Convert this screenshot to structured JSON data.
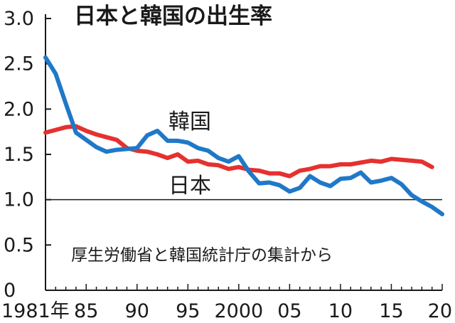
{
  "chart_data": {
    "type": "line",
    "title": "日本と韓国の出生率",
    "source_note": "厚生労働省と韓国統計庁の集計から",
    "ylim": [
      0,
      3.0
    ],
    "xlim": [
      1981,
      2020
    ],
    "y_ticks": [
      "0",
      "0.5",
      "1.0",
      "1.5",
      "2.0",
      "2.5",
      "3.0"
    ],
    "x_ticks": [
      {
        "year": 1981,
        "label": "1981年"
      },
      {
        "year": 1985,
        "label": "85"
      },
      {
        "year": 1990,
        "label": "90"
      },
      {
        "year": 1995,
        "label": "95"
      },
      {
        "year": 2000,
        "label": "2000"
      },
      {
        "year": 2005,
        "label": "05"
      },
      {
        "year": 2010,
        "label": "10"
      },
      {
        "year": 2015,
        "label": "15"
      },
      {
        "year": 2020,
        "label": "20"
      }
    ],
    "reference_line": 1.0,
    "x": [
      1981,
      1982,
      1983,
      1984,
      1985,
      1986,
      1987,
      1988,
      1989,
      1990,
      1991,
      1992,
      1993,
      1994,
      1995,
      1996,
      1997,
      1998,
      1999,
      2000,
      2001,
      2002,
      2003,
      2004,
      2005,
      2006,
      2007,
      2008,
      2009,
      2010,
      2011,
      2012,
      2013,
      2014,
      2015,
      2016,
      2017,
      2018,
      2019,
      2020
    ],
    "series": [
      {
        "name": "韓国",
        "color": "#1f78c8",
        "values": [
          2.57,
          2.39,
          2.06,
          1.74,
          1.66,
          1.58,
          1.53,
          1.55,
          1.56,
          1.57,
          1.71,
          1.76,
          1.65,
          1.65,
          1.63,
          1.57,
          1.54,
          1.46,
          1.42,
          1.48,
          1.31,
          1.18,
          1.19,
          1.16,
          1.09,
          1.13,
          1.26,
          1.19,
          1.15,
          1.23,
          1.24,
          1.3,
          1.19,
          1.21,
          1.24,
          1.17,
          1.05,
          0.98,
          0.92,
          0.84
        ]
      },
      {
        "name": "日本",
        "color": "#e5312f",
        "values": [
          1.74,
          1.77,
          1.8,
          1.81,
          1.76,
          1.72,
          1.69,
          1.66,
          1.57,
          1.54,
          1.53,
          1.5,
          1.46,
          1.5,
          1.42,
          1.43,
          1.39,
          1.38,
          1.34,
          1.36,
          1.33,
          1.32,
          1.29,
          1.29,
          1.26,
          1.32,
          1.34,
          1.37,
          1.37,
          1.39,
          1.39,
          1.41,
          1.43,
          1.42,
          1.45,
          1.44,
          1.43,
          1.42,
          1.36,
          null
        ]
      }
    ],
    "series_labels": {
      "korea": "韓国",
      "japan": "日本"
    }
  }
}
